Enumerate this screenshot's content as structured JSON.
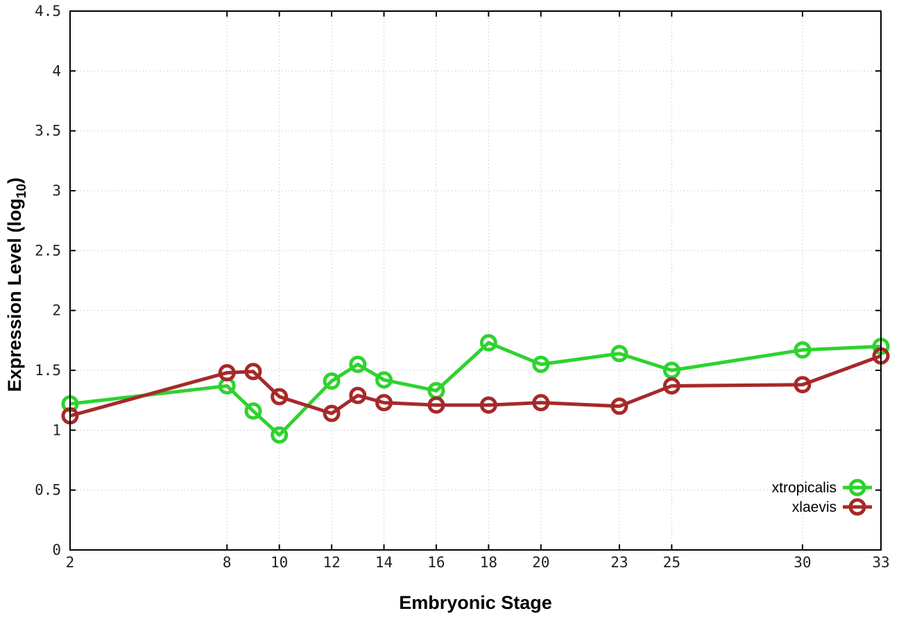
{
  "chart_data": {
    "type": "line",
    "title": "",
    "xlabel": "Embryonic Stage",
    "ylabel": {
      "pre": "Expression Level (log",
      "sub": "10",
      "post": ")"
    },
    "xlim": [
      2,
      33
    ],
    "ylim": [
      0,
      4.5
    ],
    "xticks": [
      2,
      8,
      10,
      12,
      14,
      16,
      18,
      20,
      23,
      25,
      30,
      33
    ],
    "yticks": [
      0,
      0.5,
      1,
      1.5,
      2,
      2.5,
      3,
      3.5,
      4,
      4.5
    ],
    "ytick_labels": [
      "0",
      "0.5",
      "1",
      "1.5",
      "2",
      "2.5",
      "3",
      "3.5",
      "4",
      "4.5"
    ],
    "grid": true,
    "legend_position": "inside-right-lower",
    "x": [
      2,
      8,
      9,
      10,
      12,
      13,
      14,
      16,
      18,
      20,
      23,
      25,
      30,
      33
    ],
    "series": [
      {
        "name": "xtropicalis",
        "color": "#2ed32e",
        "values": [
          1.22,
          1.37,
          1.16,
          0.96,
          1.41,
          1.55,
          1.42,
          1.33,
          1.73,
          1.55,
          1.64,
          1.5,
          1.67,
          1.7
        ]
      },
      {
        "name": "xlaevis",
        "color": "#a62929",
        "values": [
          1.12,
          1.48,
          1.49,
          1.28,
          1.14,
          1.29,
          1.23,
          1.21,
          1.21,
          1.23,
          1.2,
          1.37,
          1.38,
          1.62
        ]
      }
    ],
    "style_colors": {
      "grid": "#b3b3b3",
      "border": "#000000",
      "tick_text": "#1f1f1f"
    }
  }
}
